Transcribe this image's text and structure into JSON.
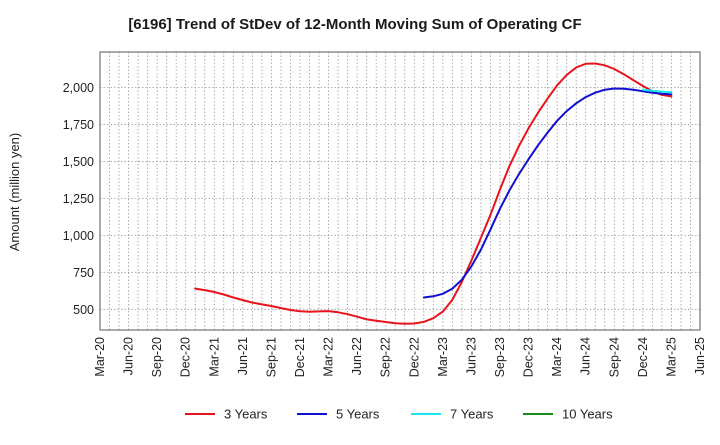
{
  "chart_data": {
    "type": "line",
    "title": "[6196]  Trend of StDev of 12-Month Moving Sum of Operating CF",
    "ylabel": "Amount (million yen)",
    "xlabel": "",
    "x_ticks": [
      "Mar-20",
      "Jun-20",
      "Sep-20",
      "Dec-20",
      "Mar-21",
      "Jun-21",
      "Sep-21",
      "Dec-21",
      "Mar-22",
      "Jun-22",
      "Sep-22",
      "Dec-22",
      "Mar-23",
      "Jun-23",
      "Sep-23",
      "Dec-23",
      "Mar-24",
      "Jun-24",
      "Sep-24",
      "Dec-24",
      "Mar-25",
      "Jun-25"
    ],
    "y_ticks": [
      500,
      750,
      1000,
      1250,
      1500,
      1750,
      2000
    ],
    "ylim": [
      360,
      2240
    ],
    "grid": true,
    "legend_position": "bottom",
    "series": [
      {
        "name": "3 Years",
        "color": "#e8141c",
        "points": [
          [
            "Jan-21",
            640
          ],
          [
            "Feb-21",
            630
          ],
          [
            "Mar-21",
            617
          ],
          [
            "Apr-21",
            600
          ],
          [
            "May-21",
            580
          ],
          [
            "Jun-21",
            562
          ],
          [
            "Jul-21",
            545
          ],
          [
            "Aug-21",
            533
          ],
          [
            "Sep-21",
            522
          ],
          [
            "Oct-21",
            508
          ],
          [
            "Nov-21",
            495
          ],
          [
            "Dec-21",
            487
          ],
          [
            "Jan-22",
            484
          ],
          [
            "Feb-22",
            486
          ],
          [
            "Mar-22",
            488
          ],
          [
            "Apr-22",
            480
          ],
          [
            "May-22",
            467
          ],
          [
            "Jun-22",
            450
          ],
          [
            "Jul-22",
            432
          ],
          [
            "Aug-22",
            422
          ],
          [
            "Sep-22",
            414
          ],
          [
            "Oct-22",
            406
          ],
          [
            "Nov-22",
            402
          ],
          [
            "Dec-22",
            404
          ],
          [
            "Jan-23",
            415
          ],
          [
            "Feb-23",
            440
          ],
          [
            "Mar-23",
            485
          ],
          [
            "Apr-23",
            565
          ],
          [
            "May-23",
            685
          ],
          [
            "Jun-23",
            830
          ],
          [
            "Jul-23",
            985
          ],
          [
            "Aug-23",
            1140
          ],
          [
            "Sep-23",
            1310
          ],
          [
            "Oct-23",
            1470
          ],
          [
            "Nov-23",
            1605
          ],
          [
            "Dec-23",
            1725
          ],
          [
            "Jan-24",
            1830
          ],
          [
            "Feb-24",
            1925
          ],
          [
            "Mar-24",
            2015
          ],
          [
            "Apr-24",
            2085
          ],
          [
            "May-24",
            2135
          ],
          [
            "Jun-24",
            2160
          ],
          [
            "Jul-24",
            2162
          ],
          [
            "Aug-24",
            2150
          ],
          [
            "Sep-24",
            2125
          ],
          [
            "Oct-24",
            2090
          ],
          [
            "Nov-24",
            2050
          ],
          [
            "Dec-24",
            2010
          ],
          [
            "Jan-25",
            1975
          ],
          [
            "Feb-25",
            1950
          ],
          [
            "Mar-25",
            1940
          ]
        ]
      },
      {
        "name": "5 Years",
        "color": "#1010d0",
        "points": [
          [
            "Jan-23",
            580
          ],
          [
            "Feb-23",
            588
          ],
          [
            "Mar-23",
            605
          ],
          [
            "Apr-23",
            640
          ],
          [
            "May-23",
            700
          ],
          [
            "Jun-23",
            790
          ],
          [
            "Jul-23",
            905
          ],
          [
            "Aug-23",
            1040
          ],
          [
            "Sep-23",
            1180
          ],
          [
            "Oct-23",
            1305
          ],
          [
            "Nov-23",
            1415
          ],
          [
            "Dec-23",
            1515
          ],
          [
            "Jan-24",
            1610
          ],
          [
            "Feb-24",
            1695
          ],
          [
            "Mar-24",
            1775
          ],
          [
            "Apr-24",
            1840
          ],
          [
            "May-24",
            1893
          ],
          [
            "Jun-24",
            1935
          ],
          [
            "Jul-24",
            1965
          ],
          [
            "Aug-24",
            1985
          ],
          [
            "Sep-24",
            1993
          ],
          [
            "Oct-24",
            1992
          ],
          [
            "Nov-24",
            1985
          ],
          [
            "Dec-24",
            1975
          ],
          [
            "Jan-25",
            1965
          ],
          [
            "Feb-25",
            1958
          ],
          [
            "Mar-25",
            1953
          ]
        ]
      },
      {
        "name": "7 Years",
        "color": "#19e6f0",
        "points": [
          [
            "Dec-24",
            1985
          ],
          [
            "Jan-25",
            1978
          ],
          [
            "Feb-25",
            1972
          ],
          [
            "Mar-25",
            1968
          ]
        ]
      },
      {
        "name": "10 Years",
        "color": "#1a8a1a",
        "points": []
      }
    ]
  }
}
